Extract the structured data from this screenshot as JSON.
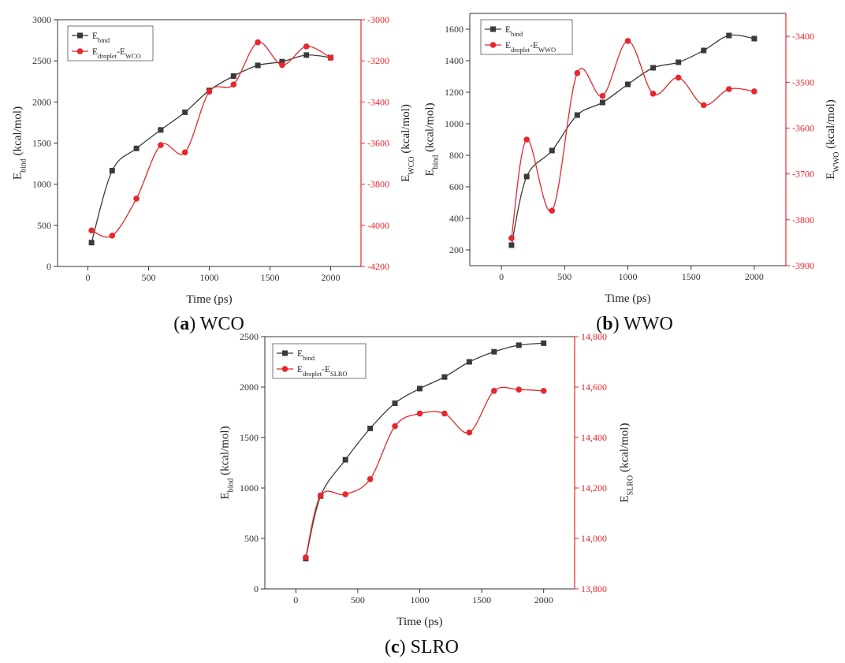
{
  "chart_data": [
    {
      "type": "line",
      "id": "a",
      "caption": {
        "letter": "a",
        "name": "WCO"
      },
      "x": [
        30,
        200,
        400,
        600,
        800,
        1000,
        1200,
        1400,
        1600,
        1800,
        2000
      ],
      "xlim": [
        -250,
        2250
      ],
      "xticks": [
        0,
        500,
        1000,
        1500,
        2000
      ],
      "xlabel": "Time (ps)",
      "left_axis": {
        "label_base": "E",
        "label_sub": "bind",
        "label_unit": " (kcal/mol)",
        "ylim": [
          0,
          3000
        ],
        "ticks": [
          0,
          500,
          1000,
          1500,
          2000,
          2500,
          3000
        ],
        "tick_labels": [
          "0",
          "500",
          "1000",
          "1500",
          "2000",
          "2500",
          "3000"
        ]
      },
      "right_axis": {
        "label_base": "E",
        "label_sub": "WCO",
        "label_unit": " (kcal/mol)",
        "ylim": [
          -4200,
          -3000
        ],
        "ticks": [
          -4200,
          -4000,
          -3800,
          -3600,
          -3400,
          -3200,
          -3000
        ],
        "tick_labels": [
          "-4200",
          "-4000",
          "-3800",
          "-3600",
          "-3400",
          "-3200",
          "-3000"
        ],
        "color": "#e8262d"
      },
      "series": [
        {
          "name_base": "E",
          "name_sub": "bind",
          "name_tail": "",
          "name_sub2": "",
          "axis": "left",
          "color": "#3a3a3a",
          "marker": "square",
          "values": [
            290,
            1165,
            1435,
            1660,
            1875,
            2140,
            2315,
            2445,
            2490,
            2570,
            2540
          ]
        },
        {
          "name_base": "E",
          "name_sub": "droplet",
          "name_tail": "-E",
          "name_sub2": "WCO",
          "axis": "right",
          "color": "#e8262d",
          "marker": "circle",
          "values": [
            -4025,
            -4050,
            -3870,
            -3610,
            -3645,
            -3350,
            -3315,
            -3110,
            -3220,
            -3130,
            -3185
          ]
        }
      ]
    },
    {
      "type": "line",
      "id": "b",
      "caption": {
        "letter": "b",
        "name": "WWO"
      },
      "x": [
        80,
        200,
        400,
        600,
        800,
        1000,
        1200,
        1400,
        1600,
        1800,
        2000
      ],
      "xlim": [
        -250,
        2250
      ],
      "xticks": [
        0,
        500,
        1000,
        1500,
        2000
      ],
      "xlabel": "Time (ps)",
      "left_axis": {
        "label_base": "E",
        "label_sub": "bind",
        "label_unit": " (kcal/mol)",
        "ylim": [
          100,
          1700
        ],
        "ticks": [
          200,
          400,
          600,
          800,
          1000,
          1200,
          1400,
          1600
        ],
        "tick_labels": [
          "200",
          "400",
          "600",
          "800",
          "1000",
          "1200",
          "1400",
          "1600"
        ]
      },
      "right_axis": {
        "label_base": "E",
        "label_sub": "WWO",
        "label_unit": " (kcal/mol)",
        "ylim": [
          -3900,
          -3350
        ],
        "ticks": [
          -3900,
          -3800,
          -3700,
          -3600,
          -3500,
          -3400
        ],
        "tick_labels": [
          "-3900",
          "-3800",
          "-3700",
          "-3600",
          "-3500",
          "-3400"
        ],
        "color": "#e8262d"
      },
      "series": [
        {
          "name_base": "E",
          "name_sub": "bind",
          "name_tail": "",
          "name_sub2": "",
          "axis": "left",
          "color": "#3a3a3a",
          "marker": "square",
          "values": [
            230,
            665,
            830,
            1055,
            1135,
            1250,
            1355,
            1390,
            1465,
            1560,
            1540
          ]
        },
        {
          "name_base": "E",
          "name_sub": "droplet",
          "name_tail": "-E",
          "name_sub2": "WWO",
          "axis": "right",
          "color": "#e8262d",
          "marker": "circle",
          "values": [
            -3840,
            -3625,
            -3780,
            -3480,
            -3530,
            -3410,
            -3525,
            -3490,
            -3550,
            -3515,
            -3520
          ]
        }
      ]
    },
    {
      "type": "line",
      "id": "c",
      "caption": {
        "letter": "c",
        "name": "SLRO"
      },
      "x": [
        80,
        200,
        400,
        600,
        800,
        1000,
        1200,
        1400,
        1600,
        1800,
        2000
      ],
      "xlim": [
        -250,
        2250
      ],
      "xticks": [
        0,
        500,
        1000,
        1500,
        2000
      ],
      "xlabel": "Time (ps)",
      "left_axis": {
        "label_base": "E",
        "label_sub": "bind",
        "label_unit": " (kcal/mol)",
        "ylim": [
          0,
          2500
        ],
        "ticks": [
          0,
          500,
          1000,
          1500,
          2000,
          2500
        ],
        "tick_labels": [
          "0",
          "500",
          "1000",
          "1500",
          "2000",
          "2500"
        ]
      },
      "right_axis": {
        "label_base": "E",
        "label_sub": "SLRO",
        "label_unit": " (kcal/mol)",
        "ylim": [
          13800,
          14800
        ],
        "ticks": [
          13800,
          14000,
          14200,
          14400,
          14600,
          14800
        ],
        "tick_labels": [
          "13,800",
          "14,000",
          "14,200",
          "14,400",
          "14,600",
          "14,800"
        ],
        "color": "#e8262d"
      },
      "series": [
        {
          "name_base": "E",
          "name_sub": "bind",
          "name_tail": "",
          "name_sub2": "",
          "axis": "left",
          "color": "#3a3a3a",
          "marker": "square",
          "values": [
            300,
            920,
            1280,
            1590,
            1840,
            1985,
            2100,
            2250,
            2350,
            2415,
            2435
          ]
        },
        {
          "name_base": "E",
          "name_sub": "droplet",
          "name_tail": "-E",
          "name_sub2": "SLRO",
          "axis": "right",
          "color": "#e8262d",
          "marker": "circle",
          "values": [
            13925,
            14170,
            14175,
            14235,
            14445,
            14495,
            14495,
            14420,
            14585,
            14590,
            14585
          ]
        }
      ]
    }
  ]
}
